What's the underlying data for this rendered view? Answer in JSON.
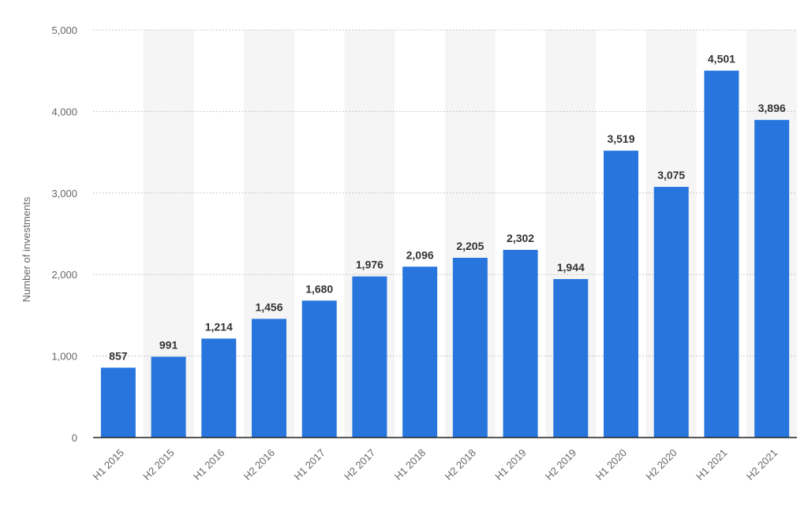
{
  "chart_data": {
    "type": "bar",
    "categories": [
      "H1 2015",
      "H2 2015",
      "H1 2016",
      "H2 2016",
      "H1 2017",
      "H2 2017",
      "H1 2018",
      "H2 2018",
      "H1 2019",
      "H2 2019",
      "H1 2020",
      "H2 2020",
      "H1 2021",
      "H2 2021"
    ],
    "values": [
      857,
      991,
      1214,
      1456,
      1680,
      1976,
      2096,
      2205,
      2302,
      1944,
      3519,
      3075,
      4501,
      3896
    ],
    "value_labels": [
      "857",
      "991",
      "1,214",
      "1,456",
      "1,680",
      "1,976",
      "2,096",
      "2,205",
      "2,302",
      "1,944",
      "3,519",
      "3,075",
      "4,501",
      "3,896"
    ],
    "ylabel": "Number of investments",
    "xlabel": "",
    "ylim": [
      0,
      5000
    ],
    "yticks": [
      0,
      1000,
      2000,
      3000,
      4000,
      5000
    ],
    "ytick_labels": [
      "0",
      "1,000",
      "2,000",
      "3,000",
      "4,000",
      "5,000"
    ],
    "grid": true,
    "bar_color": "#2876dd",
    "band_color": "#f5f5f5",
    "grid_color": "#c8c8c8"
  }
}
